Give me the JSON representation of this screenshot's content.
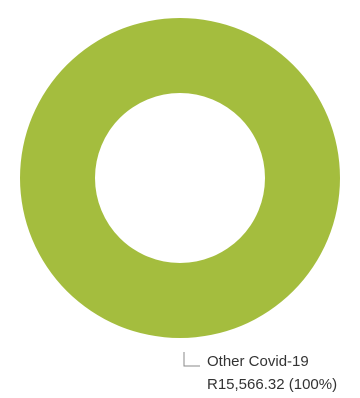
{
  "chart_data": {
    "type": "donut",
    "title": "",
    "slices": [
      {
        "label": "Other Covid-19",
        "value": 15566.32,
        "value_label": "R15,566.32 (100%)",
        "percent": 100,
        "color": "#a4bd3e"
      }
    ],
    "background": "#ffffff"
  }
}
